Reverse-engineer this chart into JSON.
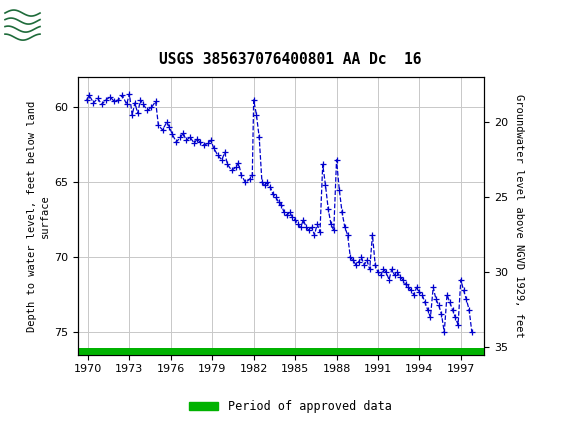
{
  "title": "USGS 385637076400801 AA Dc  16",
  "ylabel_left": "Depth to water level, feet below land\nsurface",
  "ylabel_right": "Groundwater level above NGVD 1929, feet",
  "ylim_left": [
    58.0,
    76.5
  ],
  "ylim_right": [
    17.0,
    35.5
  ],
  "xlim": [
    1969.3,
    1998.7
  ],
  "xticks": [
    1970,
    1973,
    1976,
    1979,
    1982,
    1985,
    1988,
    1991,
    1994,
    1997
  ],
  "yticks_left": [
    60,
    65,
    70,
    75
  ],
  "yticks_right": [
    20,
    25,
    30,
    35
  ],
  "grid_color": "#c8c8c8",
  "line_color": "#0000cc",
  "header_bg": "#1e6b3a",
  "legend_label": "Period of approved data",
  "legend_color": "#00b200",
  "background_color": "#ffffff",
  "data_x": [
    1969.9,
    1970.1,
    1970.4,
    1970.7,
    1971.0,
    1971.3,
    1971.6,
    1971.9,
    1972.2,
    1972.5,
    1972.8,
    1973.0,
    1973.2,
    1973.4,
    1973.6,
    1973.8,
    1974.0,
    1974.3,
    1974.6,
    1974.9,
    1975.1,
    1975.4,
    1975.7,
    1975.9,
    1976.1,
    1976.4,
    1976.7,
    1976.9,
    1977.1,
    1977.4,
    1977.7,
    1977.9,
    1978.1,
    1978.4,
    1978.7,
    1978.9,
    1979.1,
    1979.4,
    1979.7,
    1979.9,
    1980.1,
    1980.4,
    1980.7,
    1980.9,
    1981.1,
    1981.4,
    1981.7,
    1981.9,
    1982.0,
    1982.2,
    1982.4,
    1982.6,
    1982.8,
    1983.0,
    1983.2,
    1983.4,
    1983.6,
    1983.8,
    1984.0,
    1984.2,
    1984.4,
    1984.6,
    1984.8,
    1985.0,
    1985.2,
    1985.4,
    1985.6,
    1985.8,
    1986.0,
    1986.2,
    1986.4,
    1986.6,
    1986.8,
    1987.0,
    1987.2,
    1987.4,
    1987.6,
    1987.8,
    1988.0,
    1988.2,
    1988.4,
    1988.6,
    1988.8,
    1989.0,
    1989.2,
    1989.4,
    1989.6,
    1989.8,
    1990.0,
    1990.2,
    1990.4,
    1990.6,
    1990.8,
    1991.0,
    1991.2,
    1991.4,
    1991.6,
    1991.8,
    1992.0,
    1992.2,
    1992.4,
    1992.6,
    1992.8,
    1993.0,
    1993.2,
    1993.4,
    1993.6,
    1993.8,
    1994.0,
    1994.2,
    1994.4,
    1994.6,
    1994.8,
    1995.0,
    1995.2,
    1995.4,
    1995.6,
    1995.8,
    1996.0,
    1996.2,
    1996.4,
    1996.6,
    1996.8,
    1997.0,
    1997.2,
    1997.4,
    1997.6,
    1997.8
  ],
  "data_y": [
    59.5,
    59.2,
    59.7,
    59.4,
    59.8,
    59.5,
    59.3,
    59.6,
    59.5,
    59.2,
    59.8,
    59.1,
    60.5,
    59.7,
    60.4,
    59.5,
    59.8,
    60.2,
    60.0,
    59.6,
    61.2,
    61.5,
    61.0,
    61.3,
    61.8,
    62.3,
    62.0,
    61.7,
    62.2,
    62.0,
    62.4,
    62.1,
    62.3,
    62.5,
    62.4,
    62.2,
    62.7,
    63.2,
    63.5,
    63.0,
    63.8,
    64.2,
    64.0,
    63.7,
    64.5,
    65.0,
    64.8,
    64.5,
    59.5,
    60.5,
    62.0,
    65.0,
    65.2,
    65.0,
    65.3,
    65.8,
    66.0,
    66.3,
    66.5,
    67.0,
    67.2,
    67.0,
    67.3,
    67.5,
    67.8,
    68.0,
    67.5,
    68.0,
    68.2,
    68.0,
    68.5,
    67.8,
    68.3,
    63.8,
    65.2,
    66.8,
    67.8,
    68.2,
    63.5,
    65.5,
    67.0,
    68.0,
    68.5,
    70.0,
    70.2,
    70.5,
    70.3,
    70.0,
    70.5,
    70.2,
    70.8,
    68.5,
    70.5,
    71.0,
    71.2,
    70.8,
    71.0,
    71.5,
    70.8,
    71.2,
    71.0,
    71.3,
    71.5,
    71.8,
    72.0,
    72.2,
    72.5,
    72.0,
    72.3,
    72.5,
    73.0,
    73.5,
    74.0,
    72.0,
    72.8,
    73.2,
    73.8,
    75.0,
    72.5,
    73.0,
    73.5,
    74.0,
    74.5,
    71.5,
    72.2,
    72.8,
    73.5,
    75.0
  ]
}
